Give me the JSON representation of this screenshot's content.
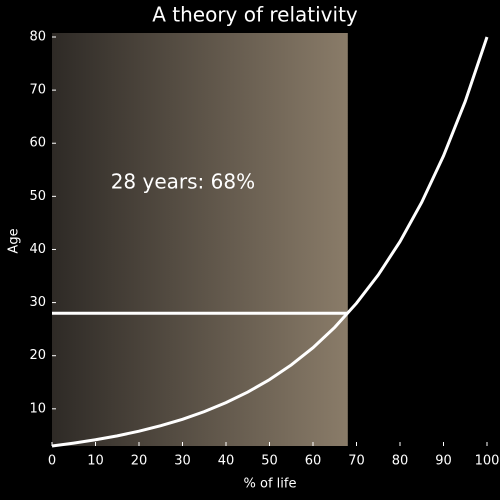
{
  "chart_data": {
    "type": "line",
    "title": "A theory of relativity",
    "xlabel": "% of life",
    "ylabel": "Age",
    "x": [
      0,
      5,
      10,
      15,
      20,
      25,
      30,
      35,
      40,
      45,
      50,
      55,
      60,
      65,
      70,
      75,
      80,
      85,
      90,
      95,
      100
    ],
    "values": [
      3,
      3.54,
      4.17,
      4.91,
      5.79,
      6.82,
      8.03,
      9.47,
      11.16,
      13.15,
      15.49,
      18.26,
      21.51,
      25.35,
      29.88,
      35.21,
      41.49,
      48.89,
      57.61,
      67.89,
      80
    ],
    "color": "#ffffff",
    "highlight": {
      "x": 68,
      "y": 28,
      "label": "28 years: 68%"
    },
    "xlim": [
      0,
      100
    ],
    "xticks": [
      0,
      10,
      20,
      30,
      40,
      50,
      60,
      70,
      80,
      90,
      100
    ],
    "ylim": [
      3,
      80
    ],
    "yticks": [
      10,
      20,
      30,
      40,
      50,
      60,
      70,
      80
    ]
  }
}
